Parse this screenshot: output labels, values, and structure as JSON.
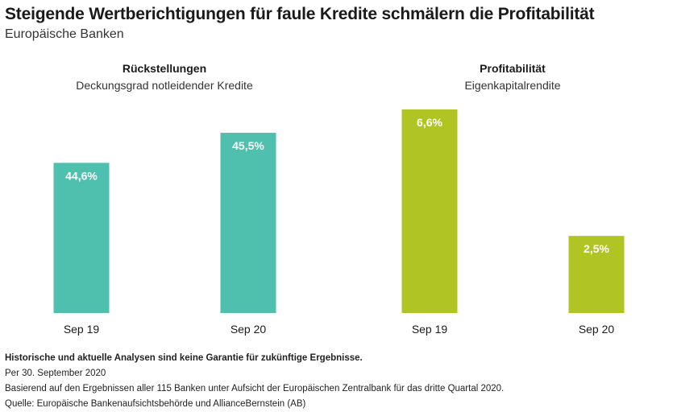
{
  "header": {
    "title": "Steigende Wertberichtigungen für faule Kredite schmälern die Profitabilität",
    "subtitle": "Europäische Banken"
  },
  "chart_data": [
    {
      "type": "bar",
      "title": "Rückstellungen",
      "subtitle": "Deckungsgrad notleidender Kredite",
      "categories": [
        "Sep 19",
        "Sep 20"
      ],
      "values": [
        44.6,
        45.5
      ],
      "value_labels": [
        "44,6%",
        "45,5%"
      ],
      "unit": "%",
      "color": "#4fbfae",
      "ylim": [
        40.1,
        46.2
      ]
    },
    {
      "type": "bar",
      "title": "Profitabilität",
      "subtitle": "Eigenkapitalrendite",
      "categories": [
        "Sep 19",
        "Sep 20"
      ],
      "values": [
        6.6,
        2.5
      ],
      "value_labels": [
        "6,6%",
        "2,5%"
      ],
      "unit": "%",
      "color": "#b0c424",
      "ylim": [
        0,
        6.6
      ]
    }
  ],
  "footnotes": {
    "disclaimer": "Historische und aktuelle Analysen sind keine Garantie für zukünftige Ergebnisse.",
    "date": "Per 30. September 2020",
    "basis": "Basierend auf den Ergebnissen aller 115 Banken unter Aufsicht der Europäischen Zentralbank für das dritte Quartal 2020.",
    "source": "Quelle: Europäische Bankenaufsichtsbehörde und AllianceBernstein (AB)"
  }
}
